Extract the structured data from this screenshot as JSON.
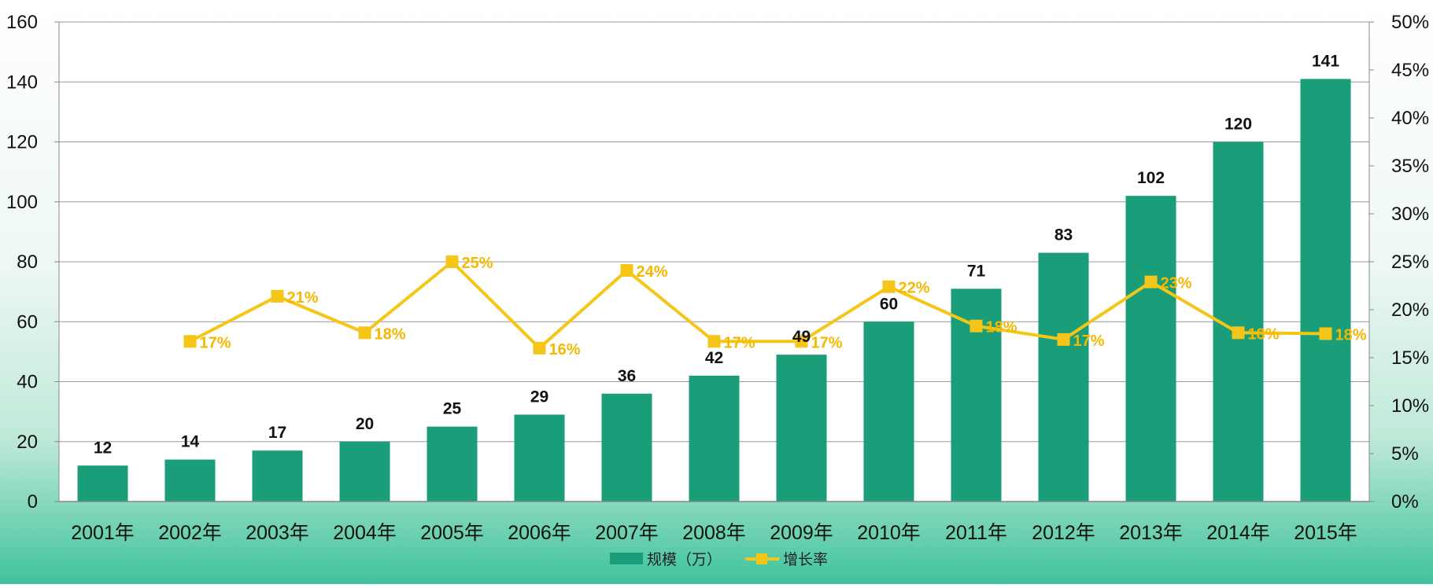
{
  "chart_data": {
    "type": "bar",
    "categories": [
      "2001年",
      "2002年",
      "2003年",
      "2004年",
      "2005年",
      "2006年",
      "2007年",
      "2008年",
      "2009年",
      "2010年",
      "2011年",
      "2012年",
      "2013年",
      "2014年",
      "2015年"
    ],
    "series": [
      {
        "name": "规模（万）",
        "type": "bar",
        "axis": "left",
        "color": "#1a9e79",
        "values": [
          12,
          14,
          17,
          20,
          25,
          29,
          36,
          42,
          49,
          60,
          71,
          83,
          102,
          120,
          141
        ],
        "labels": [
          "12",
          "14",
          "17",
          "20",
          "25",
          "29",
          "36",
          "42",
          "49",
          "60",
          "71",
          "83",
          "102",
          "120",
          "141"
        ]
      },
      {
        "name": "增长率",
        "type": "line",
        "axis": "right",
        "color": "#f5c518",
        "marker": "square",
        "values": [
          null,
          0.167,
          0.214,
          0.176,
          0.25,
          0.16,
          0.241,
          0.167,
          0.167,
          0.224,
          0.183,
          0.169,
          0.229,
          0.176,
          0.175
        ],
        "labels": [
          "",
          "17%",
          "21%",
          "18%",
          "25%",
          "16%",
          "24%",
          "17%",
          "17%",
          "22%",
          "18%",
          "17%",
          "23%",
          "18%",
          "18%"
        ]
      }
    ],
    "y_left": {
      "min": 0,
      "max": 160,
      "ticks": [
        "0",
        "20",
        "40",
        "60",
        "80",
        "100",
        "120",
        "140",
        "160"
      ]
    },
    "y_right": {
      "min": 0,
      "max": 0.5,
      "ticks": [
        "0%",
        "5%",
        "10%",
        "15%",
        "20%",
        "25%",
        "30%",
        "35%",
        "40%",
        "45%",
        "50%"
      ]
    },
    "grid": true,
    "legend": {
      "position": "bottom",
      "items": [
        "规模（万）",
        "增长率"
      ]
    }
  }
}
